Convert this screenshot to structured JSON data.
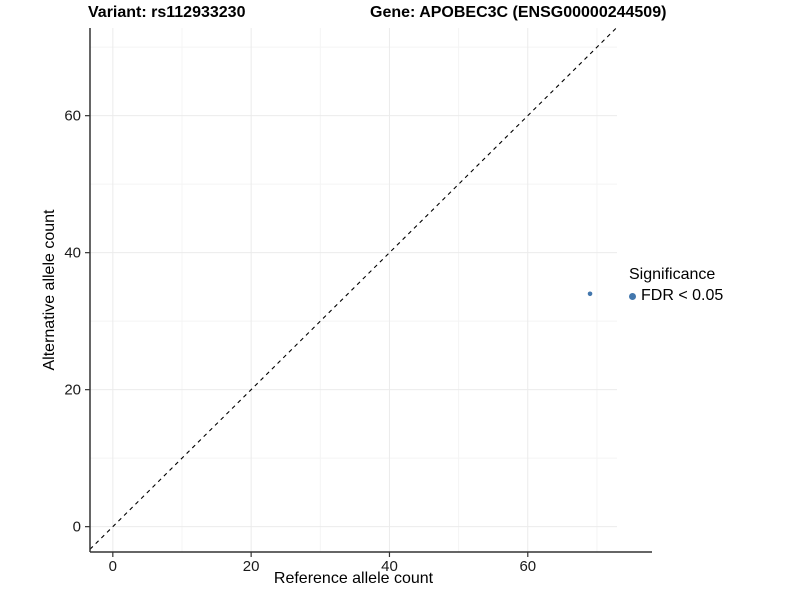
{
  "chart_data": {
    "type": "scatter",
    "titles": {
      "left": "Variant: rs112933230",
      "right": "Gene: APOBEC3C (ENSG00000244509)"
    },
    "xlabel": "Reference allele count",
    "ylabel": "Alternative allele count",
    "xlim": [
      -3.3,
      72.9
    ],
    "ylim": [
      -3.7,
      72.8
    ],
    "x_ticks": [
      0,
      20,
      40,
      60
    ],
    "y_ticks": [
      0,
      20,
      40,
      60
    ],
    "x_minor_ticks": [
      10,
      30,
      50,
      70
    ],
    "y_minor_ticks": [
      10,
      30,
      50,
      70
    ],
    "grid": true,
    "points": [
      {
        "x": 69,
        "y": 34,
        "series": "FDR < 0.05"
      }
    ],
    "reference_line": {
      "kind": "identity",
      "slope": 1,
      "intercept": 0,
      "style": "dashed",
      "color": "#000000"
    },
    "legend": {
      "title": "Significance",
      "position": "right",
      "items": [
        {
          "label": "FDR < 0.05",
          "color": "#4377AD"
        }
      ]
    },
    "colors": {
      "point": "#4377AD",
      "grid_major": "#ebebeb",
      "grid_minor": "#f4f4f4",
      "axis_line": "#333333",
      "tick": "#333333",
      "text": "#1a1a1a",
      "background": "#ffffff"
    }
  }
}
